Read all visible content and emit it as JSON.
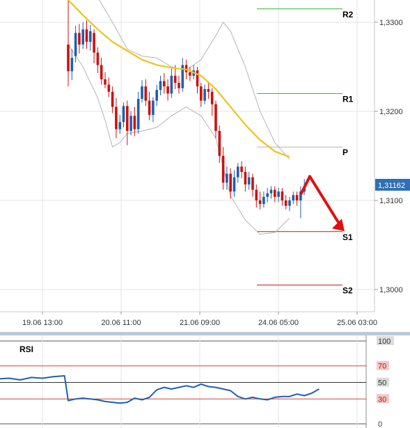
{
  "colors": {
    "bull": "#1f5fb0",
    "bear": "#cc1111",
    "ma": "#f2c21b",
    "bollinger": "#b4b4b4",
    "resistance": "#2db52d",
    "support": "#d01010",
    "pivot": "#b4b4b4",
    "arrow": "#e01010",
    "price_tag_bg": "#2f6fb5",
    "rsi_line": "#1f5fb0",
    "rsi_ref": "#d84040"
  },
  "chart_data": [
    {
      "type": "candlestick",
      "instrument_price_tag": "1,31162",
      "last_price": 1.31162,
      "ylim": [
        1.2975,
        1.3325
      ],
      "y_ticks": [
        1.3,
        1.31,
        1.32,
        1.33
      ],
      "y_tick_labels": [
        "1,3000",
        "1,3100",
        "1,3200",
        "1,3300"
      ],
      "x_tick_labels": [
        "19.06 13:00",
        "20.06 11:00",
        "21.06 09:00",
        "24.06 05:00",
        "25.06 03:00"
      ],
      "levels": [
        {
          "label": "R2",
          "value": 1.3315,
          "kind": "resistance"
        },
        {
          "label": "R1",
          "value": 1.322,
          "kind": "resistance"
        },
        {
          "label": "P",
          "value": 1.316,
          "kind": "pivot"
        },
        {
          "label": "S1",
          "value": 1.3065,
          "kind": "support"
        },
        {
          "label": "S2",
          "value": 1.3005,
          "kind": "support"
        }
      ],
      "candles": [
        [
          1.3275,
          1.3245,
          1.333,
          1.3228
        ],
        [
          1.3245,
          1.326,
          1.327,
          1.3235
        ],
        [
          1.3262,
          1.3288,
          1.3296,
          1.3255
        ],
        [
          1.3288,
          1.3275,
          1.3298,
          1.3265
        ],
        [
          1.3275,
          1.3292,
          1.33,
          1.327
        ],
        [
          1.3292,
          1.3278,
          1.3302,
          1.327
        ],
        [
          1.3278,
          1.329,
          1.3297,
          1.3268
        ],
        [
          1.3288,
          1.3266,
          1.3292,
          1.3254
        ],
        [
          1.3266,
          1.3252,
          1.3272,
          1.3243
        ],
        [
          1.3252,
          1.3236,
          1.326,
          1.323
        ],
        [
          1.3236,
          1.323,
          1.3244,
          1.3226
        ],
        [
          1.323,
          1.3222,
          1.3238,
          1.3216
        ],
        [
          1.3222,
          1.3205,
          1.3228,
          1.3198
        ],
        [
          1.3205,
          1.318,
          1.3215,
          1.317
        ],
        [
          1.318,
          1.3188,
          1.3196,
          1.3175
        ],
        [
          1.3188,
          1.3206,
          1.321,
          1.3182
        ],
        [
          1.3206,
          1.3178,
          1.3212,
          1.3162
        ],
        [
          1.3178,
          1.3195,
          1.32,
          1.3173
        ],
        [
          1.3195,
          1.318,
          1.3205,
          1.3172
        ],
        [
          1.318,
          1.3214,
          1.3222,
          1.3175
        ],
        [
          1.3214,
          1.3228,
          1.3235,
          1.321
        ],
        [
          1.3228,
          1.3212,
          1.3236,
          1.3206
        ],
        [
          1.3212,
          1.3196,
          1.3222,
          1.319
        ],
        [
          1.3196,
          1.3212,
          1.3216,
          1.3188
        ],
        [
          1.3212,
          1.3224,
          1.323,
          1.3206
        ],
        [
          1.3224,
          1.3234,
          1.324,
          1.3218
        ],
        [
          1.3234,
          1.3228,
          1.3243,
          1.322
        ],
        [
          1.3228,
          1.322,
          1.3236,
          1.3212
        ],
        [
          1.322,
          1.324,
          1.3248,
          1.3215
        ],
        [
          1.324,
          1.3232,
          1.3252,
          1.3225
        ],
        [
          1.3232,
          1.3226,
          1.324,
          1.322
        ],
        [
          1.3226,
          1.3252,
          1.326,
          1.3222
        ],
        [
          1.3252,
          1.3244,
          1.3258,
          1.3236
        ],
        [
          1.3244,
          1.324,
          1.325,
          1.3234
        ],
        [
          1.324,
          1.3246,
          1.3252,
          1.3236
        ],
        [
          1.3246,
          1.3228,
          1.325,
          1.322
        ],
        [
          1.3228,
          1.3212,
          1.3232,
          1.3205
        ],
        [
          1.3212,
          1.3225,
          1.323,
          1.3208
        ],
        [
          1.3225,
          1.3222,
          1.3232,
          1.3214
        ],
        [
          1.3222,
          1.3208,
          1.3226,
          1.3195
        ],
        [
          1.3208,
          1.3178,
          1.3212,
          1.317
        ],
        [
          1.3178,
          1.315,
          1.3184,
          1.3142
        ],
        [
          1.315,
          1.312,
          1.316,
          1.3112
        ],
        [
          1.312,
          1.313,
          1.3138,
          1.3112
        ],
        [
          1.313,
          1.311,
          1.3136,
          1.3102
        ],
        [
          1.311,
          1.3126,
          1.3134,
          1.3104
        ],
        [
          1.3126,
          1.3138,
          1.3142,
          1.312
        ],
        [
          1.3138,
          1.3132,
          1.3144,
          1.3125
        ],
        [
          1.3132,
          1.3118,
          1.3138,
          1.311
        ],
        [
          1.3118,
          1.3126,
          1.3132,
          1.3112
        ],
        [
          1.3126,
          1.3112,
          1.313,
          1.3104
        ],
        [
          1.3112,
          1.31,
          1.3118,
          1.3092
        ],
        [
          1.31,
          1.3096,
          1.311,
          1.309
        ],
        [
          1.3096,
          1.3104,
          1.311,
          1.3092
        ],
        [
          1.3104,
          1.3108,
          1.3114,
          1.3098
        ],
        [
          1.3108,
          1.3112,
          1.3116,
          1.3102
        ],
        [
          1.3112,
          1.3104,
          1.3116,
          1.3098
        ],
        [
          1.3104,
          1.311,
          1.3114,
          1.3098
        ],
        [
          1.311,
          1.31,
          1.3114,
          1.3094
        ],
        [
          1.31,
          1.3094,
          1.3106,
          1.309
        ],
        [
          1.3094,
          1.31,
          1.3104,
          1.3088
        ],
        [
          1.31,
          1.3106,
          1.311,
          1.3096
        ],
        [
          1.3106,
          1.31,
          1.311,
          1.3094
        ],
        [
          1.31,
          1.311,
          1.3116,
          1.308
        ],
        [
          1.311,
          1.3116,
          1.3124,
          1.3106
        ]
      ],
      "ma_line": [
        [
          -4,
          1.3345
        ],
        [
          0,
          1.3325
        ],
        [
          4,
          1.3308
        ],
        [
          8,
          1.3292
        ],
        [
          12,
          1.3278
        ],
        [
          16,
          1.3268
        ],
        [
          20,
          1.3258
        ],
        [
          24,
          1.3252
        ],
        [
          28,
          1.3249
        ],
        [
          32,
          1.3247
        ],
        [
          36,
          1.324
        ],
        [
          40,
          1.3225
        ],
        [
          44,
          1.3205
        ],
        [
          48,
          1.3185
        ],
        [
          52,
          1.3168
        ],
        [
          56,
          1.3155
        ],
        [
          60,
          1.3149
        ]
      ],
      "boll_upper": [
        [
          0,
          1.3345
        ],
        [
          4,
          1.334
        ],
        [
          8,
          1.3328
        ],
        [
          12,
          1.33
        ],
        [
          16,
          1.327
        ],
        [
          20,
          1.3262
        ],
        [
          24,
          1.326
        ],
        [
          28,
          1.325
        ],
        [
          32,
          1.3246
        ],
        [
          36,
          1.3258
        ],
        [
          40,
          1.3285
        ],
        [
          42,
          1.33
        ],
        [
          44,
          1.329
        ],
        [
          48,
          1.325
        ],
        [
          52,
          1.32
        ],
        [
          56,
          1.3165
        ],
        [
          60,
          1.3146
        ]
      ],
      "boll_lower": [
        [
          0,
          1.3275
        ],
        [
          4,
          1.325
        ],
        [
          8,
          1.3215
        ],
        [
          10,
          1.319
        ],
        [
          12,
          1.316
        ],
        [
          14,
          1.3165
        ],
        [
          16,
          1.3175
        ],
        [
          20,
          1.3178
        ],
        [
          24,
          1.3182
        ],
        [
          28,
          1.3195
        ],
        [
          32,
          1.3205
        ],
        [
          36,
          1.3195
        ],
        [
          40,
          1.317
        ],
        [
          44,
          1.3105
        ],
        [
          48,
          1.3078
        ],
        [
          52,
          1.3062
        ],
        [
          56,
          1.3064
        ],
        [
          60,
          1.308
        ]
      ],
      "forecast_arrow": {
        "from": [
          1.3108,
          1.3127
        ],
        "to": 1.3067,
        "direction": "down"
      }
    },
    {
      "type": "line",
      "name": "RSI",
      "ylim": [
        0,
        100
      ],
      "ref_levels": [
        30,
        50,
        70
      ],
      "y_tick_labels": [
        "100",
        "70",
        "50",
        "30",
        "0"
      ],
      "values": [
        [
          -24,
          55
        ],
        [
          -20,
          54
        ],
        [
          -16,
          55
        ],
        [
          -13,
          53
        ],
        [
          -10,
          56
        ],
        [
          -7,
          55
        ],
        [
          -4,
          57
        ],
        [
          -1,
          58
        ],
        [
          0,
          28
        ],
        [
          2,
          30
        ],
        [
          4,
          31
        ],
        [
          6,
          30
        ],
        [
          8,
          29
        ],
        [
          10,
          27
        ],
        [
          12,
          26
        ],
        [
          14,
          25
        ],
        [
          16,
          26
        ],
        [
          18,
          31
        ],
        [
          20,
          29
        ],
        [
          22,
          32
        ],
        [
          24,
          41
        ],
        [
          26,
          44
        ],
        [
          28,
          42
        ],
        [
          30,
          44
        ],
        [
          32,
          46
        ],
        [
          34,
          44
        ],
        [
          36,
          48
        ],
        [
          38,
          45
        ],
        [
          40,
          44
        ],
        [
          42,
          42
        ],
        [
          44,
          40
        ],
        [
          46,
          33
        ],
        [
          48,
          30
        ],
        [
          50,
          32
        ],
        [
          52,
          30
        ],
        [
          54,
          29
        ],
        [
          56,
          32
        ],
        [
          58,
          33
        ],
        [
          60,
          33
        ],
        [
          62,
          36
        ],
        [
          64,
          34
        ],
        [
          66,
          37
        ],
        [
          68,
          42
        ]
      ]
    }
  ],
  "rsi_panel": {
    "title": "RSI"
  }
}
